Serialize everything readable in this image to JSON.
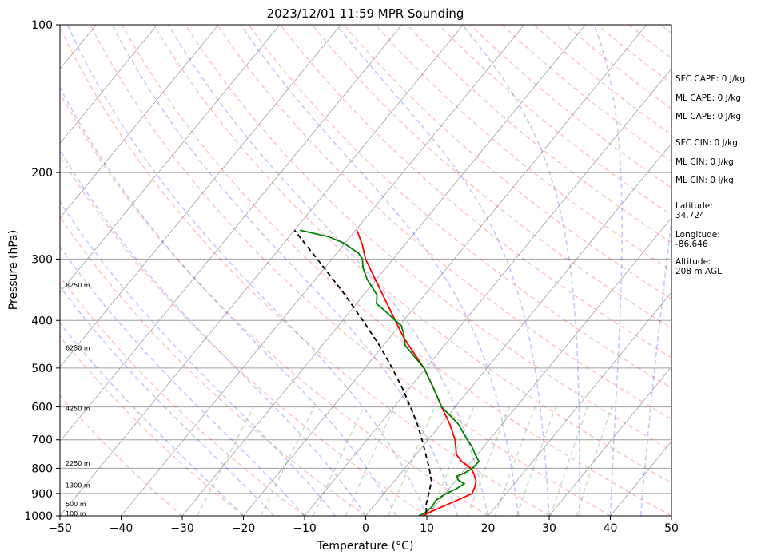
{
  "chart_data": {
    "type": "line",
    "title": "2023/12/01 11:59 MPR Sounding",
    "xlabel": "Temperature (°C)",
    "ylabel": "Pressure (hPa)",
    "xlim": [
      -50,
      50
    ],
    "ylim": [
      1000,
      100
    ],
    "y_scale": "log",
    "x_ticks": [
      -50,
      -40,
      -30,
      -20,
      -10,
      0,
      10,
      20,
      30,
      40,
      50
    ],
    "x_tick_labels": [
      "−50",
      "−40",
      "−30",
      "−20",
      "−10",
      "0",
      "10",
      "20",
      "30",
      "40",
      "50"
    ],
    "y_ticks": [
      1000,
      900,
      800,
      700,
      600,
      500,
      400,
      300,
      200,
      100
    ],
    "y_tick_labels": [
      "1000",
      "900",
      "800",
      "700",
      "600",
      "500",
      "400",
      "300",
      "200",
      "100"
    ],
    "skew": true,
    "grid": true,
    "series": [
      {
        "role": "temperature",
        "color": "#ff0000",
        "points": [
          [
            1000,
            9.3
          ],
          [
            985,
            9.9
          ],
          [
            960,
            11.2
          ],
          [
            925,
            13.1
          ],
          [
            900,
            14.4
          ],
          [
            875,
            14.0
          ],
          [
            850,
            13.4
          ],
          [
            820,
            12.0
          ],
          [
            800,
            10.8
          ],
          [
            775,
            8.4
          ],
          [
            750,
            6.6
          ],
          [
            700,
            4.4
          ],
          [
            650,
            1.4
          ],
          [
            600,
            -2.2
          ],
          [
            550,
            -6.0
          ],
          [
            500,
            -10.3
          ],
          [
            450,
            -15.8
          ],
          [
            430,
            -18.1
          ],
          [
            400,
            -21.4
          ],
          [
            350,
            -27.5
          ],
          [
            300,
            -34.5
          ],
          [
            280,
            -37.0
          ],
          [
            262,
            -39.8
          ]
        ]
      },
      {
        "role": "dewpoint",
        "color": "#008000",
        "points": [
          [
            1000,
            8.7
          ],
          [
            985,
            9.3
          ],
          [
            960,
            9.6
          ],
          [
            930,
            9.4
          ],
          [
            905,
            10.0
          ],
          [
            880,
            11.2
          ],
          [
            860,
            11.8
          ],
          [
            845,
            10.3
          ],
          [
            830,
            9.6
          ],
          [
            820,
            10.3
          ],
          [
            800,
            11.1
          ],
          [
            775,
            11.2
          ],
          [
            750,
            9.7
          ],
          [
            720,
            7.9
          ],
          [
            700,
            6.4
          ],
          [
            650,
            2.8
          ],
          [
            600,
            -2.2
          ],
          [
            550,
            -6.0
          ],
          [
            500,
            -10.3
          ],
          [
            450,
            -16.4
          ],
          [
            425,
            -18.3
          ],
          [
            410,
            -19.7
          ],
          [
            400,
            -21.4
          ],
          [
            380,
            -24.8
          ],
          [
            370,
            -26.7
          ],
          [
            355,
            -27.8
          ],
          [
            330,
            -31.5
          ],
          [
            312,
            -33.8
          ],
          [
            300,
            -35.0
          ],
          [
            292,
            -36.4
          ],
          [
            278,
            -40.3
          ],
          [
            270,
            -43.6
          ],
          [
            262,
            -49.1
          ]
        ]
      },
      {
        "role": "parcel",
        "color": "#000000",
        "style": "dashed",
        "points": [
          [
            985,
            9.5
          ],
          [
            950,
            8.4
          ],
          [
            900,
            7.3
          ],
          [
            850,
            6.1
          ],
          [
            800,
            4.0
          ],
          [
            750,
            1.6
          ],
          [
            700,
            -1.0
          ],
          [
            650,
            -3.9
          ],
          [
            600,
            -7.3
          ],
          [
            550,
            -11.1
          ],
          [
            500,
            -15.5
          ],
          [
            450,
            -20.6
          ],
          [
            400,
            -26.7
          ],
          [
            350,
            -33.8
          ],
          [
            300,
            -42.4
          ],
          [
            262,
            -50.0
          ]
        ]
      }
    ],
    "height_labels": [
      {
        "text": "100 m",
        "p": 988
      },
      {
        "text": "500 m",
        "p": 945
      },
      {
        "text": "1300 m",
        "p": 866
      },
      {
        "text": "2250 m",
        "p": 781
      },
      {
        "text": "4250 m",
        "p": 604
      },
      {
        "text": "6250 m",
        "p": 455
      },
      {
        "text": "8250 m",
        "p": 339
      }
    ],
    "info": [
      "SFC CAPE: 0 J/kg",
      "ML CAPE: 0 J/kg",
      "ML CAPE: 0 J/kg",
      "SFC CIN: 0 J/kg",
      "ML CIN: 0 J/kg",
      "ML CIN: 0 J/kg",
      "Latitude:",
      "34.724",
      "Longitude:",
      "-86.646",
      "Altitude:",
      "208 m AGL"
    ]
  }
}
